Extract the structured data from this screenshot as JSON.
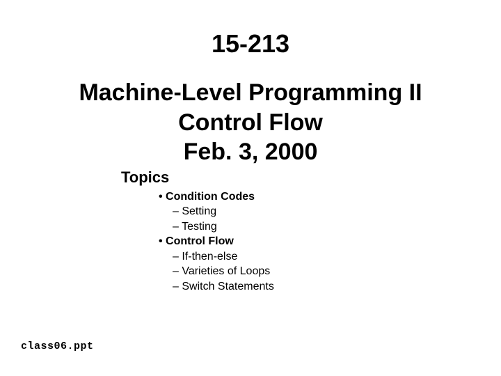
{
  "course_number": "15-213",
  "title_line1": "Machine-Level Programming II",
  "title_line2": "Control Flow",
  "title_line3": "Feb. 3, 2000",
  "topics_heading": "Topics",
  "topics": {
    "item1": "Condition Codes",
    "item1_sub1": "Setting",
    "item1_sub2": "Testing",
    "item2": "Control Flow",
    "item2_sub1": "If-then-else",
    "item2_sub2": "Varieties of Loops",
    "item2_sub3": "Switch Statements"
  },
  "footer": "class06.ppt",
  "colors": {
    "background": "#ffffff",
    "text": "#000000"
  },
  "fonts": {
    "main": "Comic Sans MS",
    "footer": "Courier New"
  }
}
